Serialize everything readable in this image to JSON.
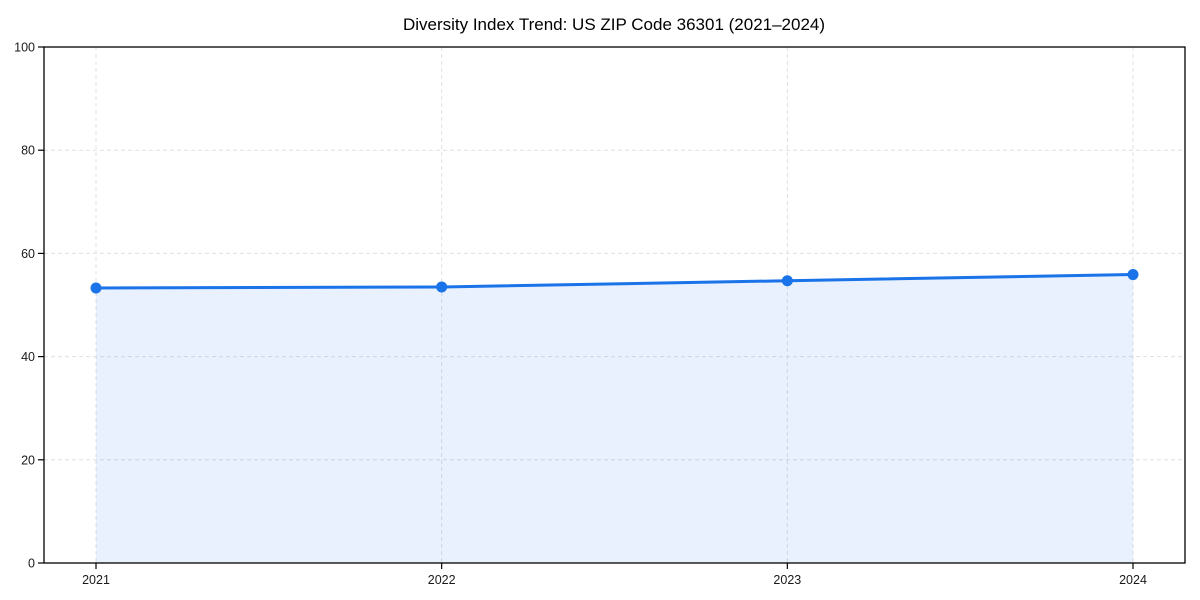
{
  "page": {
    "background_color": "#ffffff"
  },
  "chart_data": {
    "type": "line",
    "title": "Diversity Index Trend: US ZIP Code 36301 (2021–2024)",
    "xlabel": "",
    "ylabel": "",
    "categories": [
      "2021",
      "2022",
      "2023",
      "2024"
    ],
    "values": [
      53.3,
      53.5,
      54.7,
      55.9
    ],
    "ylim": [
      0,
      100
    ],
    "yticks": [
      0,
      20,
      40,
      60,
      80,
      100
    ],
    "grid": "dashed",
    "legend": "none",
    "marker_shape": "circle",
    "line_color": "#1a73e8",
    "marker_color": "#1a73e8",
    "fill_color": "#1a73e8",
    "fill_opacity": 0.1,
    "grid_color": "#e0e0e0",
    "axis_color": "#000000",
    "tick_label_color": "#1a1a1a",
    "title_color": "#000000"
  }
}
